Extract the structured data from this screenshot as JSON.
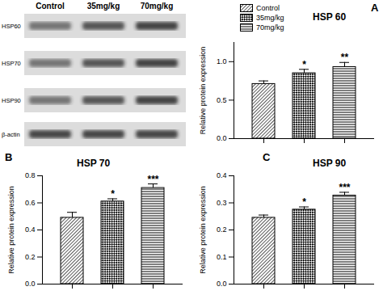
{
  "blot": {
    "lanes": [
      "Control",
      "35mg/kg",
      "70mg/kg"
    ],
    "rows": [
      "HSP60",
      "HSP70",
      "HSP90",
      "β-actin"
    ]
  },
  "chart_data": [
    {
      "type": "bar",
      "panel": "A",
      "title": "HSP 60",
      "y_label": "Relative protein expression",
      "categories": [
        "Control",
        "35mg/kg",
        "70mg/kg"
      ],
      "values": [
        0.71,
        0.85,
        0.93
      ],
      "errors": [
        0.04,
        0.05,
        0.06
      ],
      "annotations": [
        null,
        "*",
        "**"
      ],
      "color": "#000000",
      "ylim": [
        0,
        1.25
      ],
      "yticks": [
        {
          "value": 0,
          "label": "0.0"
        },
        0.5,
        {
          "value": 1,
          "label": "1.0"
        }
      ],
      "tick_labels": "y",
      "legend": "top-left"
    },
    {
      "type": "bar",
      "panel": "B",
      "title": "HSP 70",
      "y_label": "Relative protein expression",
      "categories": [
        "Control",
        "35mg/kg",
        "70mg/kg"
      ],
      "values": [
        0.49,
        0.61,
        0.71
      ],
      "errors": [
        0.04,
        0.02,
        0.03
      ],
      "annotations": [
        null,
        "*",
        "***"
      ],
      "color": "#000000",
      "ylim": [
        0,
        0.8
      ],
      "yticks": [
        {
          "value": 0,
          "label": "0.0"
        },
        0.2,
        0.4,
        0.6,
        0.8
      ],
      "tick_labels": "y"
    },
    {
      "type": "bar",
      "panel": "C",
      "title": "HSP 90",
      "y_label": "Relative protein expression",
      "categories": [
        "Control",
        "35mg/kg",
        "70mg/kg"
      ],
      "values": [
        0.245,
        0.275,
        0.327
      ],
      "errors": [
        0.01,
        0.01,
        0.012
      ],
      "annotations": [
        null,
        "*",
        "***"
      ],
      "color": "#000000",
      "ylim": [
        0,
        0.4
      ],
      "yticks": [
        {
          "value": 0,
          "label": "0.0"
        },
        0.1,
        0.2,
        0.3,
        0.4
      ],
      "tick_labels": "y"
    }
  ]
}
